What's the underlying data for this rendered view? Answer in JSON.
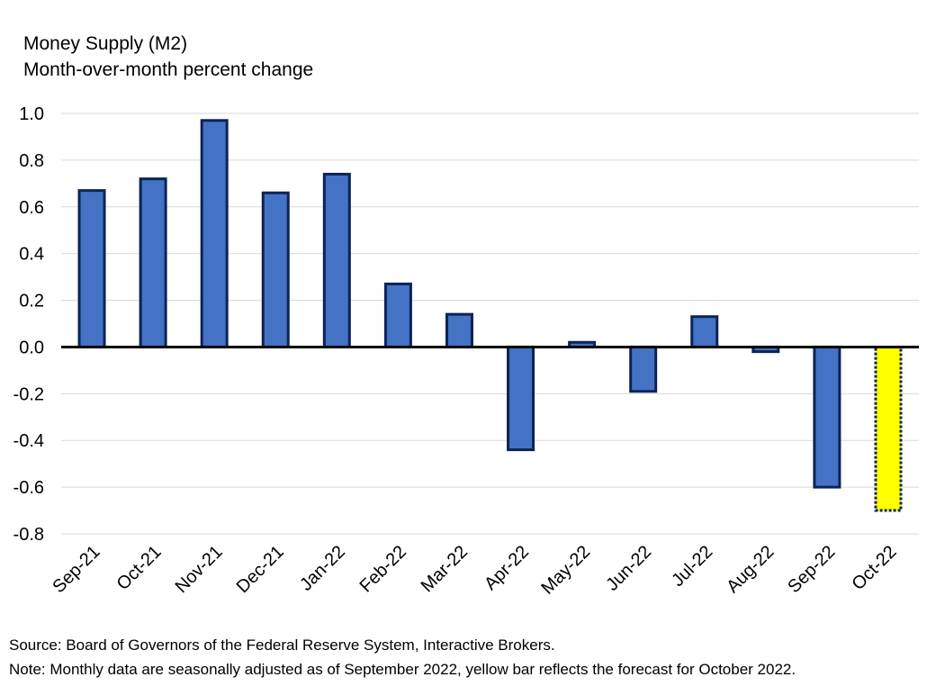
{
  "title": "Money Supply (M2)",
  "subtitle": "Month-over-month percent change",
  "source": "Source: Board of Governors of the Federal Reserve System, Interactive Brokers.",
  "note": "Note: Monthly data are seasonally adjusted as of September 2022, yellow bar reflects the forecast for October 2022.",
  "chart_data": {
    "type": "bar",
    "categories": [
      "Sep-21",
      "Oct-21",
      "Nov-21",
      "Dec-21",
      "Jan-22",
      "Feb-22",
      "Mar-22",
      "Apr-22",
      "May-22",
      "Jun-22",
      "Jul-22",
      "Aug-22",
      "Sep-22",
      "Oct-22"
    ],
    "values": [
      0.67,
      0.72,
      0.97,
      0.66,
      0.74,
      0.27,
      0.14,
      -0.44,
      0.02,
      -0.19,
      0.13,
      -0.02,
      -0.6,
      -0.7
    ],
    "forecast": [
      false,
      false,
      false,
      false,
      false,
      false,
      false,
      false,
      false,
      false,
      false,
      false,
      false,
      true
    ],
    "ylim": [
      -0.8,
      1.0
    ],
    "yticks": [
      "1.0",
      "0.8",
      "0.6",
      "0.4",
      "0.2",
      "0.0",
      "-0.2",
      "-0.4",
      "-0.6",
      "-0.8"
    ],
    "ytick_values": [
      1.0,
      0.8,
      0.6,
      0.4,
      0.2,
      0.0,
      -0.2,
      -0.4,
      -0.6,
      -0.8
    ],
    "grid": true,
    "colors": {
      "bar": "#4472C4",
      "bar_edge": "#0C2357",
      "forecast": "#FFFF00",
      "grid": "#D9D9D9",
      "zero_line": "#000000"
    }
  }
}
